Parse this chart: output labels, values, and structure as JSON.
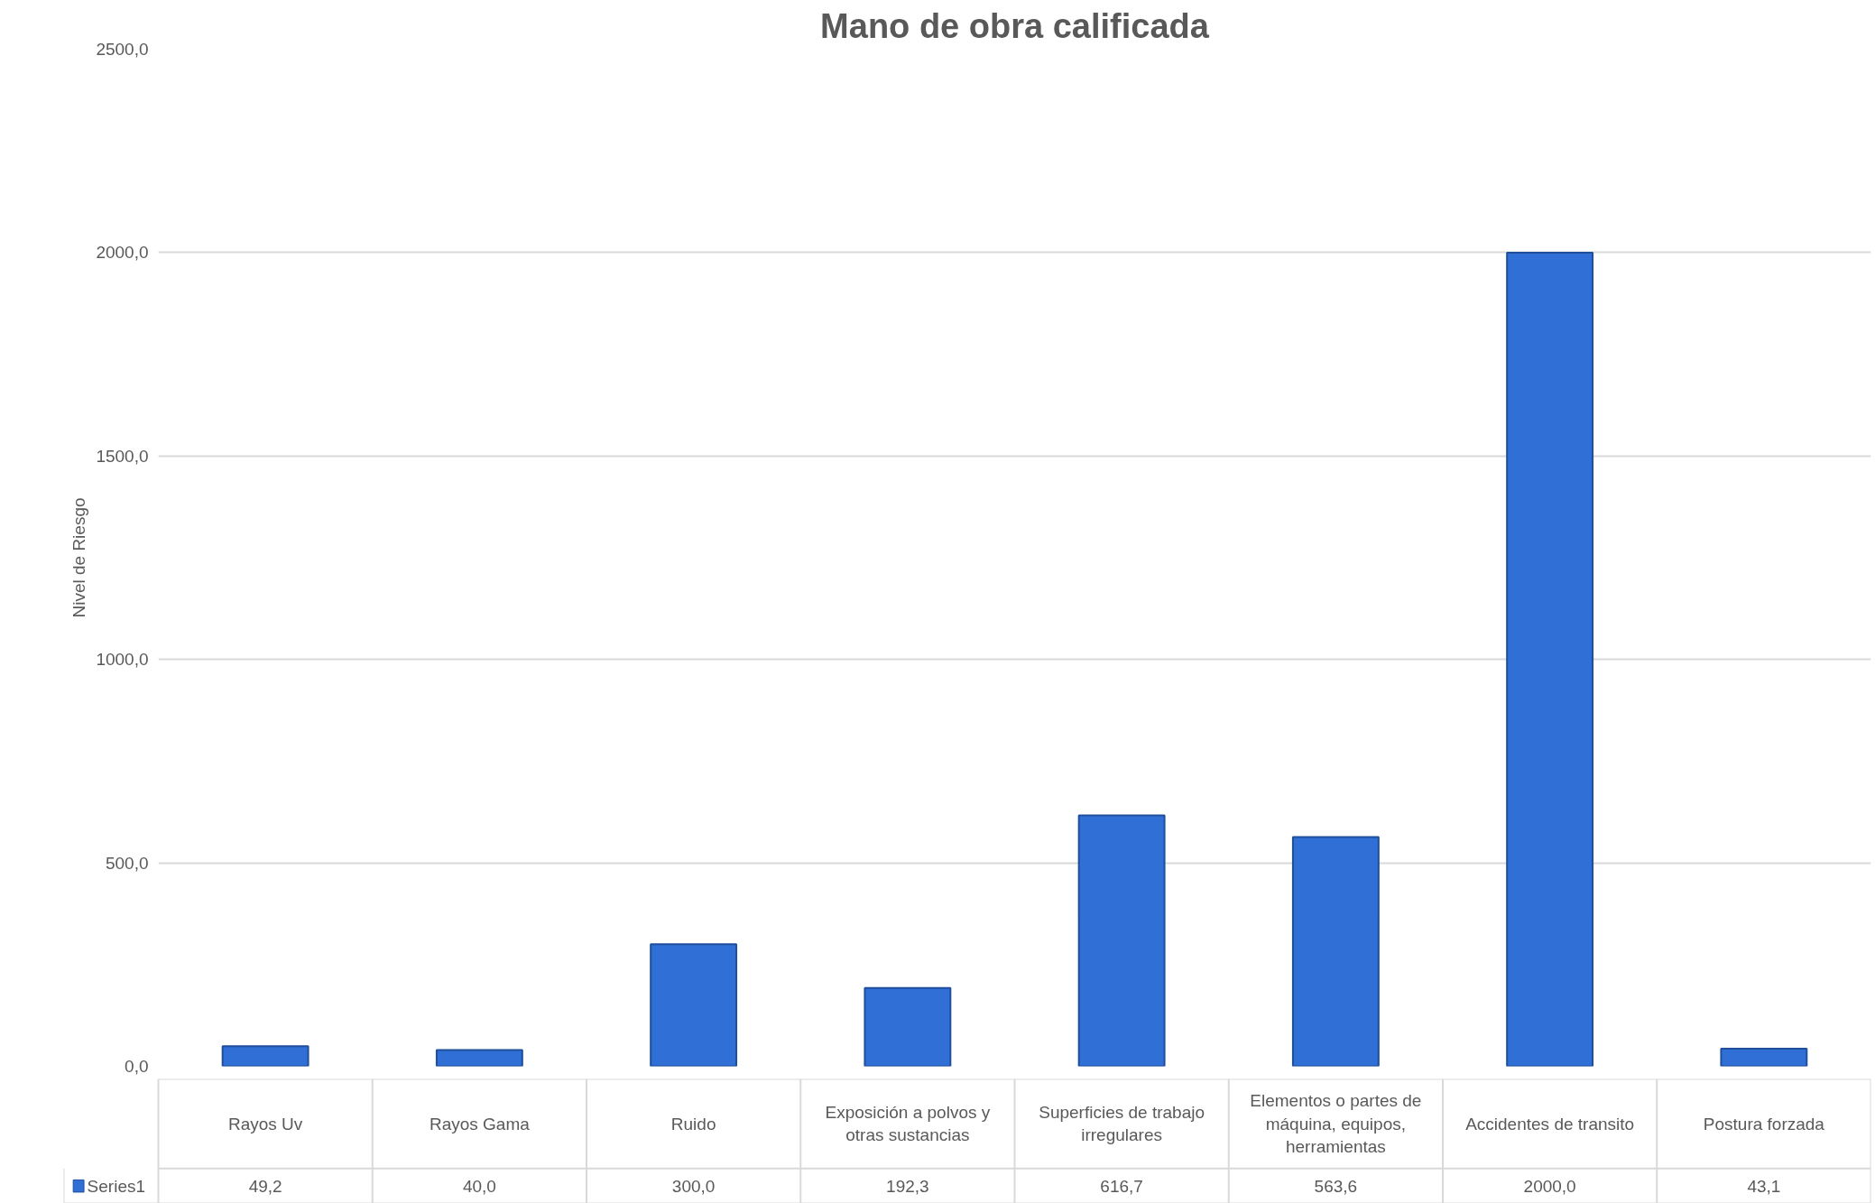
{
  "chart_data": {
    "type": "bar",
    "title": "Mano de obra calificada",
    "ylabel": "Nivel de Riesgo",
    "categories": [
      "Rayos Uv",
      "Rayos Gama",
      "Ruido",
      "Exposición a polvos y otras sustancias",
      "Superficies de trabajo irregulares",
      "Elementos o partes de máquina, equipos, herramientas",
      "Accidentes de transito",
      "Postura forzada"
    ],
    "series": [
      {
        "name": "Series1",
        "color": "#2f6fd6",
        "values": [
          49.2,
          40.0,
          300.0,
          192.3,
          616.7,
          563.6,
          2000.0,
          43.1
        ],
        "value_labels": [
          "49,2",
          "40,0",
          "300,0",
          "192,3",
          "616,7",
          "563,6",
          "2000,0",
          "43,1"
        ]
      }
    ],
    "ylim": [
      0,
      2500
    ],
    "yticks": [
      {
        "value": 0,
        "label": "0,0"
      },
      {
        "value": 500,
        "label": "500,0"
      },
      {
        "value": 1000,
        "label": "1000,0"
      },
      {
        "value": 1500,
        "label": "1500,0"
      },
      {
        "value": 2000,
        "label": "2000,0"
      },
      {
        "value": 2500,
        "label": "2500,0"
      }
    ],
    "grid": "y"
  }
}
